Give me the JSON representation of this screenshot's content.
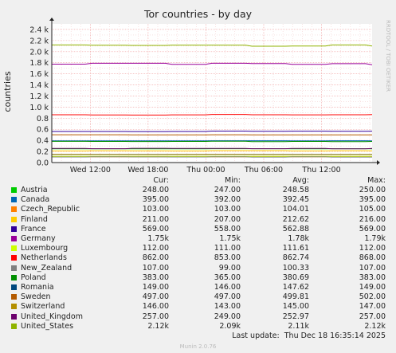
{
  "chart_data": {
    "type": "line",
    "title": "Tor countries - by day",
    "ylabel": "countries",
    "watermark": "RRDTOOL / TOBI OETIKER",
    "y_ticks": [
      "0.0",
      "0.2",
      "0.4",
      "0.6",
      "0.8",
      "1.0 k",
      "1.2 k",
      "1.4 k",
      "1.6 k",
      "1.8 k",
      "2.0 k",
      "2.2 k",
      "2.4 k"
    ],
    "y_tick_values": [
      0,
      200,
      400,
      600,
      800,
      1000,
      1200,
      1400,
      1600,
      1800,
      2000,
      2200,
      2400
    ],
    "ylim": [
      0,
      2500
    ],
    "x_ticks": [
      "Wed 12:00",
      "Wed 18:00",
      "Thu 00:00",
      "Thu 06:00",
      "Thu 12:00"
    ],
    "x_tick_hours": [
      4,
      10,
      16,
      22,
      28
    ],
    "xlim_hours": [
      0,
      33.25
    ],
    "grid": true,
    "legend_columns": [
      "Cur:",
      "Min:",
      "Avg:",
      "Max:"
    ],
    "series": [
      {
        "name": "Austria",
        "color": "#00cc00",
        "cur": "248.00",
        "min": "247.00",
        "avg": "248.58",
        "max": "250.00",
        "value": 248,
        "lo": 247,
        "hi": 250
      },
      {
        "name": "Canada",
        "color": "#0066b3",
        "cur": "395.00",
        "min": "392.00",
        "avg": "392.45",
        "max": "395.00",
        "value": 392,
        "lo": 392,
        "hi": 395
      },
      {
        "name": "Czech_Republic",
        "color": "#ff8000",
        "cur": "103.00",
        "min": "103.00",
        "avg": "104.01",
        "max": "105.00",
        "value": 104,
        "lo": 103,
        "hi": 105
      },
      {
        "name": "Finland",
        "color": "#ffcc00",
        "cur": "211.00",
        "min": "207.00",
        "avg": "212.62",
        "max": "216.00",
        "value": 212.6,
        "lo": 207,
        "hi": 216
      },
      {
        "name": "France",
        "color": "#330099",
        "cur": "569.00",
        "min": "558.00",
        "avg": "562.88",
        "max": "569.00",
        "value": 562.9,
        "lo": 558,
        "hi": 569
      },
      {
        "name": "Germany",
        "color": "#990099",
        "cur": "1.75k",
        "min": "1.75k",
        "avg": "1.78k",
        "max": "1.79k",
        "value": 1780,
        "lo": 1750,
        "hi": 1790
      },
      {
        "name": "Luxembourg",
        "color": "#ccff00",
        "cur": "112.00",
        "min": "111.00",
        "avg": "111.61",
        "max": "112.00",
        "value": 111.6,
        "lo": 111,
        "hi": 112
      },
      {
        "name": "Netherlands",
        "color": "#ff0000",
        "cur": "862.00",
        "min": "853.00",
        "avg": "862.74",
        "max": "868.00",
        "value": 862.7,
        "lo": 853,
        "hi": 868
      },
      {
        "name": "New_Zealand",
        "color": "#808080",
        "cur": "107.00",
        "min": "99.00",
        "avg": "100.33",
        "max": "107.00",
        "value": 100.3,
        "lo": 99,
        "hi": 107
      },
      {
        "name": "Poland",
        "color": "#008f00",
        "cur": "383.00",
        "min": "365.00",
        "avg": "380.69",
        "max": "383.00",
        "value": 380.7,
        "lo": 365,
        "hi": 383
      },
      {
        "name": "Romania",
        "color": "#00487d",
        "cur": "149.00",
        "min": "146.00",
        "avg": "147.62",
        "max": "149.00",
        "value": 147.6,
        "lo": 146,
        "hi": 149
      },
      {
        "name": "Sweden",
        "color": "#b35a00",
        "cur": "497.00",
        "min": "497.00",
        "avg": "499.81",
        "max": "502.00",
        "value": 499.8,
        "lo": 497,
        "hi": 502
      },
      {
        "name": "Switzerland",
        "color": "#b38f00",
        "cur": "146.00",
        "min": "143.00",
        "avg": "145.00",
        "max": "147.00",
        "value": 145,
        "lo": 143,
        "hi": 147
      },
      {
        "name": "United_Kingdom",
        "color": "#6b006b",
        "cur": "257.00",
        "min": "249.00",
        "avg": "252.97",
        "max": "257.00",
        "value": 253,
        "lo": 249,
        "hi": 257
      },
      {
        "name": "United_States",
        "color": "#8fb300",
        "cur": "2.12k",
        "min": "2.09k",
        "avg": "2.11k",
        "max": "2.12k",
        "value": 2110,
        "lo": 2090,
        "hi": 2120
      }
    ]
  },
  "last_update": "Last update:  Thu Dec 18 16:35:14 2025",
  "footer": "Munin 2.0.76"
}
